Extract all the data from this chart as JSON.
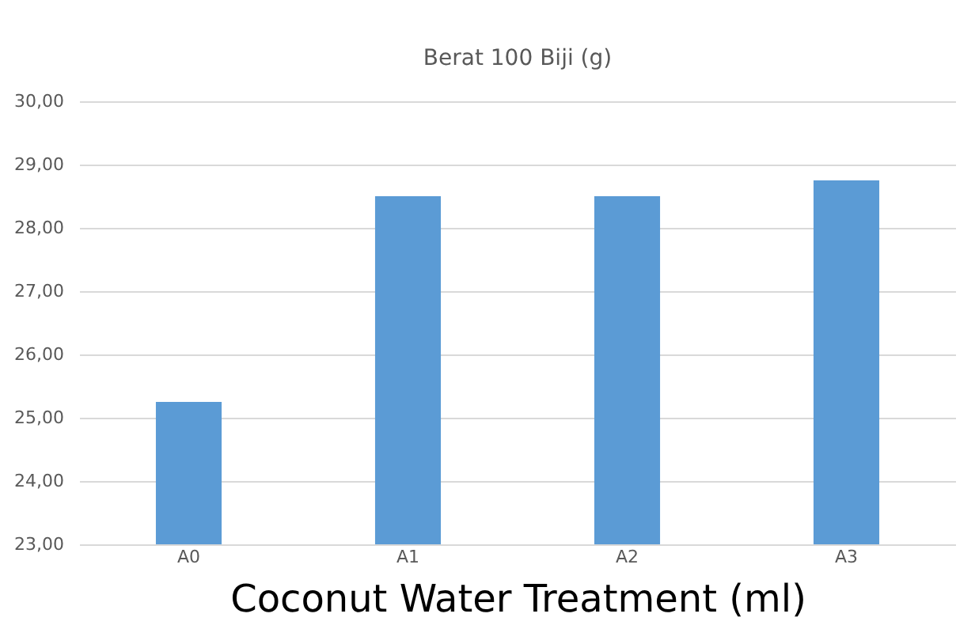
{
  "chart_data": {
    "type": "bar",
    "title": "Berat 100 Biji (g)",
    "xlabel": "Coconut Water Treatment (ml)",
    "categories": [
      "A0",
      "A1",
      "A2",
      "A3"
    ],
    "values": [
      25.25,
      28.5,
      28.5,
      28.75
    ],
    "color": "#5b9bd5",
    "ylim": [
      23,
      30
    ],
    "yticks": [
      {
        "value": 23,
        "label": "23,00"
      },
      {
        "value": 24,
        "label": "24,00"
      },
      {
        "value": 25,
        "label": "25,00"
      },
      {
        "value": 26,
        "label": "26,00"
      },
      {
        "value": 27,
        "label": "27,00"
      },
      {
        "value": 28,
        "label": "28,00"
      },
      {
        "value": 29,
        "label": "29,00"
      },
      {
        "value": 30,
        "label": "30,00"
      }
    ],
    "grid": "y"
  }
}
